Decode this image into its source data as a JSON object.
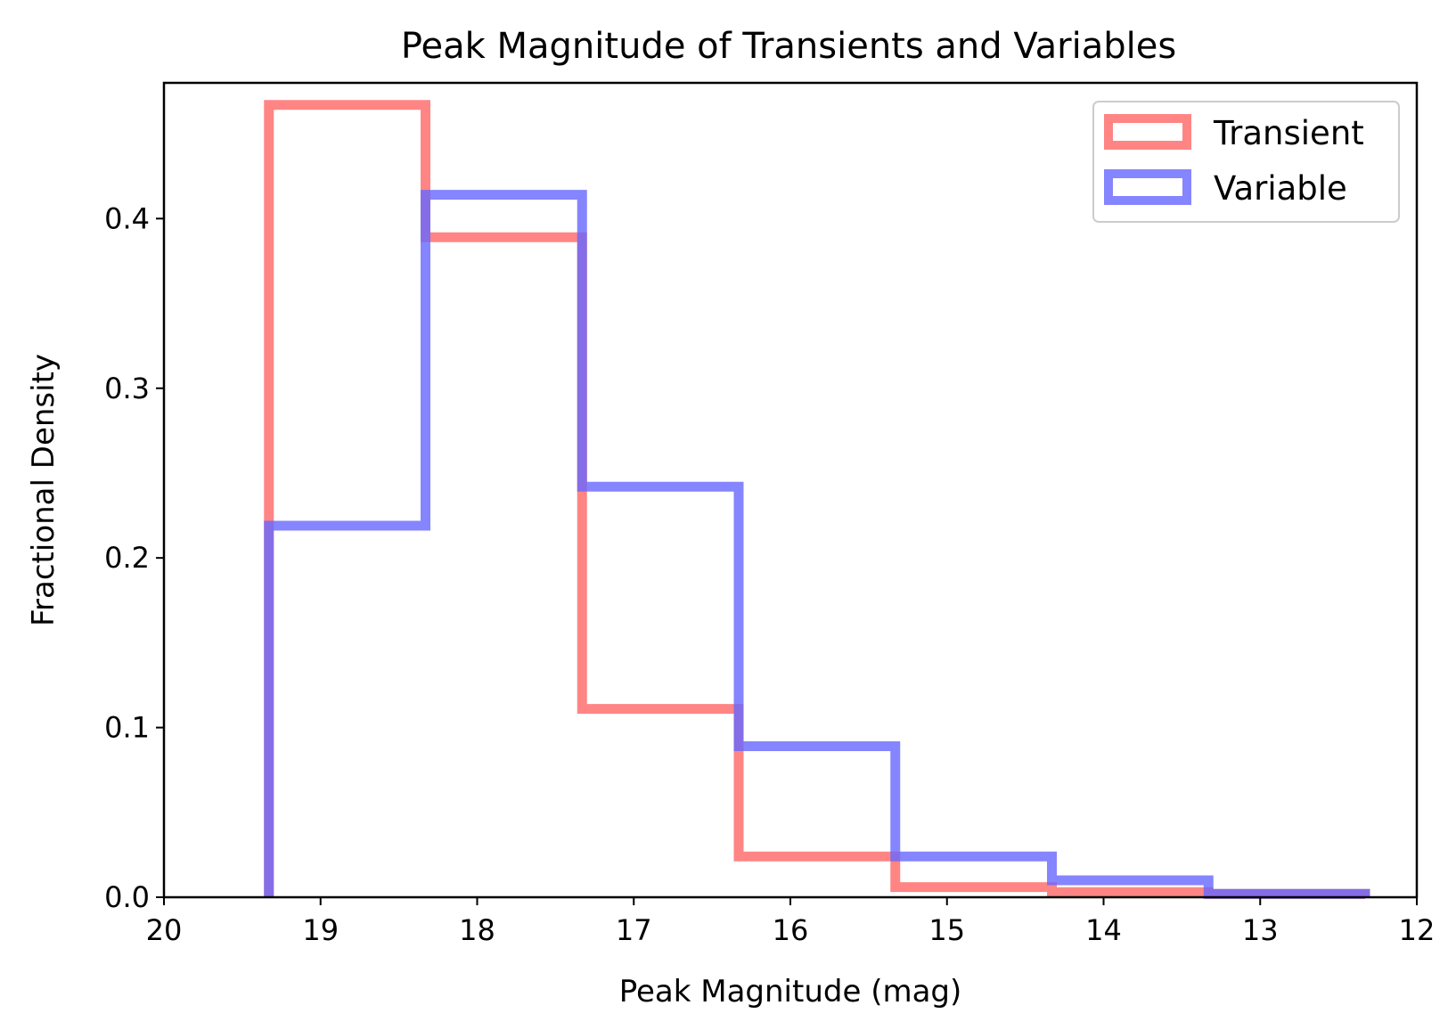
{
  "chart_data": {
    "type": "histogram-step",
    "title": "Peak Magnitude of Transients and Variables",
    "xlabel": "Peak Magnitude (mag)",
    "ylabel": "Fractional Density",
    "xlim": [
      20,
      12
    ],
    "ylim": [
      0,
      0.48
    ],
    "x_inverted": true,
    "x_ticks": [
      20,
      19,
      18,
      17,
      16,
      15,
      14,
      13,
      12
    ],
    "x_tick_labels": [
      "20",
      "19",
      "18",
      "17",
      "16",
      "15",
      "14",
      "13",
      "12"
    ],
    "y_ticks": [
      0.0,
      0.1,
      0.2,
      0.3,
      0.4
    ],
    "y_tick_labels": [
      "0.0",
      "0.1",
      "0.2",
      "0.3",
      "0.4"
    ],
    "grid": false,
    "legend_position": "top-right",
    "series": [
      {
        "name": "Transient",
        "color": "#ff6666",
        "bin_edges": [
          19.33,
          18.33,
          17.33,
          16.33,
          15.33,
          14.33,
          13.33,
          12.33
        ],
        "values": [
          0.467,
          0.389,
          0.111,
          0.024,
          0.006,
          0.003,
          0.002
        ]
      },
      {
        "name": "Variable",
        "color": "#6666ff",
        "bin_edges": [
          19.33,
          18.33,
          17.33,
          16.33,
          15.33,
          14.33,
          13.33,
          12.33
        ],
        "values": [
          0.219,
          0.414,
          0.242,
          0.089,
          0.024,
          0.01,
          0.002
        ]
      }
    ]
  }
}
